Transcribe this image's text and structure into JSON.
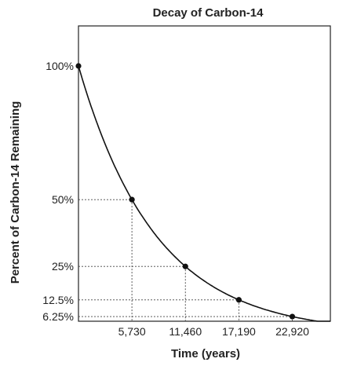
{
  "chart_data": {
    "type": "line",
    "title": "Decay of Carbon-14",
    "xlabel": "Time (years)",
    "ylabel": "Percent of Carbon-14 Remaining",
    "x_ticks": [
      "5,730",
      "11,460",
      "17,190",
      "22,920"
    ],
    "y_ticks": [
      "100%",
      "50%",
      "25%",
      "12.5%",
      "6.25%"
    ],
    "half_life": 5730,
    "xlim": [
      0,
      27000
    ],
    "ylim": [
      4.5,
      100
    ],
    "series": [
      {
        "x": [
          0,
          5730,
          11460,
          17190,
          22920
        ],
        "y": [
          100,
          50,
          25,
          12.5,
          6.25
        ]
      }
    ],
    "marked_points": [
      {
        "x": 0,
        "y": 100
      },
      {
        "x": 5730,
        "y": 50
      },
      {
        "x": 11460,
        "y": 25
      },
      {
        "x": 17190,
        "y": 12.5
      },
      {
        "x": 22920,
        "y": 6.25
      }
    ],
    "grid": false,
    "guides": true
  }
}
